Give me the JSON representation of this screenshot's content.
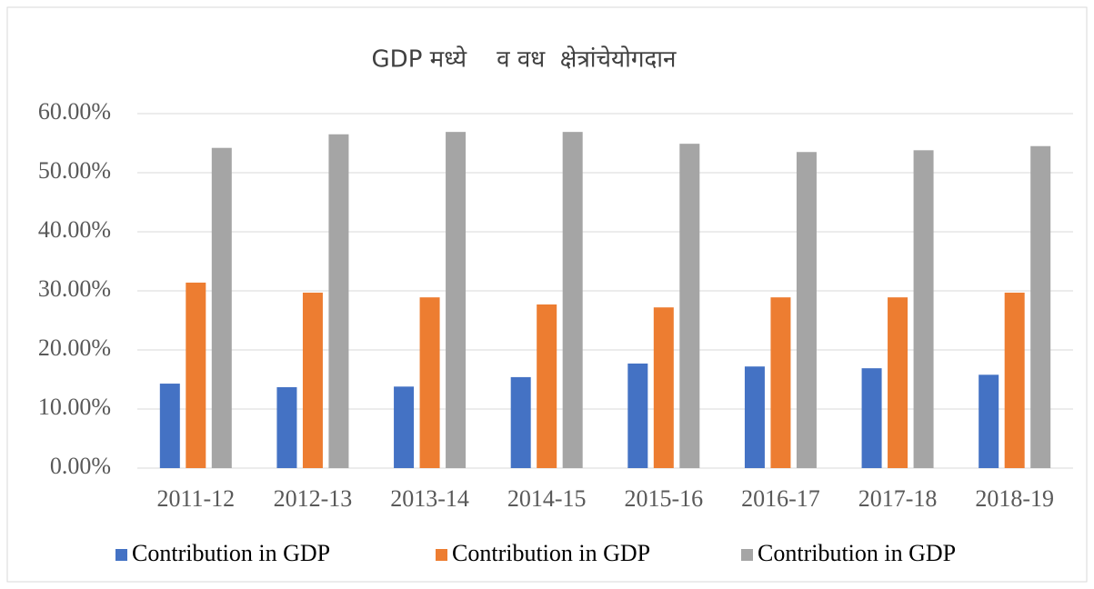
{
  "chart_data": {
    "type": "bar",
    "title": "GDP मध्ये    व वध  क्षेत्रांचेयोगदान",
    "categories": [
      "2011-12",
      "2012-13",
      "2013-14",
      "2014-15",
      "2015-16",
      "2016-17",
      "2017-18",
      "2018-19"
    ],
    "series": [
      {
        "name": "Contribution in GDP",
        "color": "#4472c4",
        "values": [
          14.3,
          13.7,
          13.8,
          15.4,
          17.7,
          17.2,
          16.9,
          15.8
        ]
      },
      {
        "name": "Contribution in GDP",
        "color": "#ed7d31",
        "values": [
          31.4,
          29.7,
          28.9,
          27.7,
          27.2,
          28.9,
          28.9,
          29.7
        ]
      },
      {
        "name": "Contribution in GDP",
        "color": "#a5a5a5",
        "values": [
          54.2,
          56.5,
          56.9,
          56.9,
          54.9,
          53.5,
          53.8,
          54.5
        ]
      }
    ],
    "ylim": [
      0,
      60
    ],
    "yticks": [
      {
        "value": 0,
        "label": "0.00%"
      },
      {
        "value": 10,
        "label": "10.00%"
      },
      {
        "value": 20,
        "label": "20.00%"
      },
      {
        "value": 30,
        "label": "30.00%"
      },
      {
        "value": 40,
        "label": "40.00%"
      },
      {
        "value": 50,
        "label": "50.00%"
      },
      {
        "value": 60,
        "label": "60.00%"
      }
    ],
    "grid": true,
    "legend": "bottom"
  }
}
